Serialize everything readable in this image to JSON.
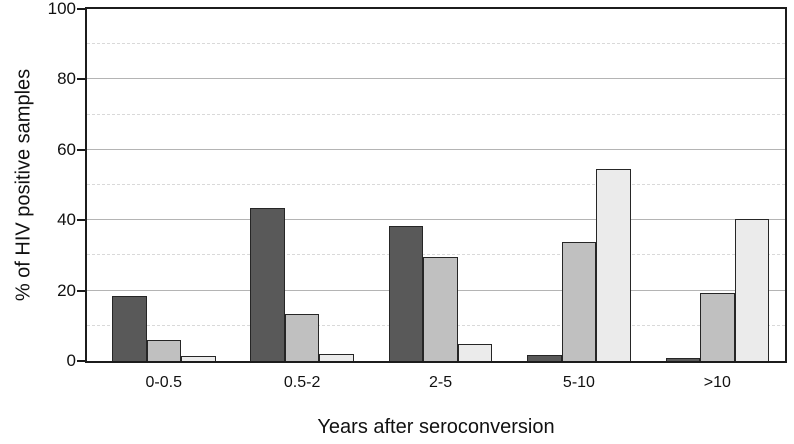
{
  "chart_data": {
    "type": "bar",
    "title": "",
    "xlabel": "Years after seroconversion",
    "ylabel": "% of HIV positive samples",
    "ylim": [
      0,
      100
    ],
    "yticks": [
      0,
      20,
      40,
      60,
      80,
      100
    ],
    "yticks_minor": [
      10,
      30,
      50,
      70,
      90
    ],
    "categories": [
      "0-0.5",
      "0.5-2",
      "2-5",
      "5-10",
      ">10"
    ],
    "series": [
      {
        "name": "dark-gray-bars",
        "color": "#595959",
        "values": [
          18,
          43,
          38,
          1.2,
          0.4
        ]
      },
      {
        "name": "medium-gray-bars",
        "color": "#c0c0c0",
        "values": [
          5.5,
          13,
          29,
          33.5,
          19
        ]
      },
      {
        "name": "light-gray-bars",
        "color": "#ebebeb",
        "values": [
          1,
          1.7,
          4.5,
          54,
          40
        ]
      }
    ],
    "grid": {
      "major": "solid",
      "minor": "dashed"
    },
    "legend": "none",
    "frame_color": "#1c1c1c",
    "major_grid_color": "#b4b4b4",
    "minor_grid_color": "#d9d9d9"
  }
}
